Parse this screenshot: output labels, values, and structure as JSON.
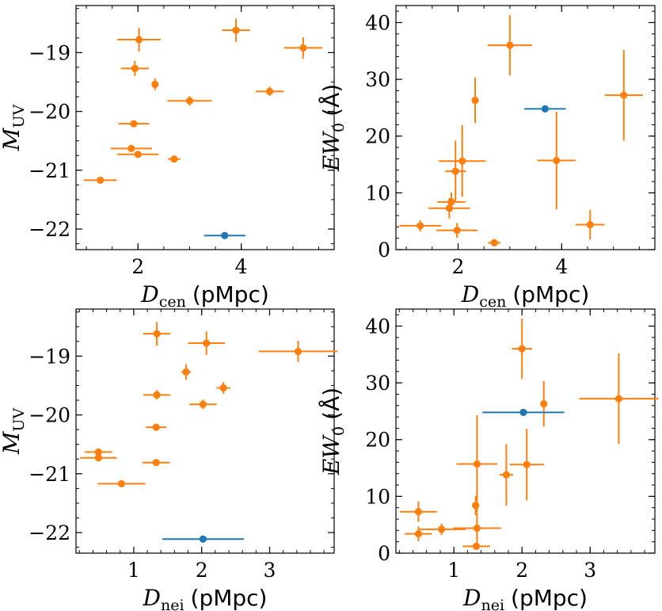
{
  "colors": {
    "orange": "#ff7f0e",
    "blue": "#1f77b4"
  },
  "chart_data": [
    {
      "type": "scatter",
      "id": "p1",
      "xlabel": {
        "symbol": "D",
        "sub": "cen",
        "unit": "(pMpc)"
      },
      "ylabel": {
        "symbol": "M",
        "sub": "UV",
        "unit": ""
      },
      "xlim": [
        0.8,
        5.8
      ],
      "ylim": [
        -22.35,
        -18.2
      ],
      "y_inverted": true,
      "xticks": [
        2,
        4
      ],
      "xtick_labels": [
        "2",
        "4"
      ],
      "yticks": [
        -19,
        -20,
        -21,
        -22
      ],
      "ytick_labels": [
        "−19",
        "−20",
        "−21",
        "−22"
      ],
      "series": [
        {
          "name": "orange",
          "color": "#ff7f0e",
          "points": [
            {
              "x": 2.02,
              "y": -18.78,
              "xerr": 0.42,
              "yerr": 0.2
            },
            {
              "x": 3.9,
              "y": -18.62,
              "xerr": 0.27,
              "yerr": 0.2
            },
            {
              "x": 5.2,
              "y": -18.92,
              "xerr": 0.37,
              "yerr": 0.18
            },
            {
              "x": 1.94,
              "y": -19.27,
              "xerr": 0.27,
              "yerr": 0.13
            },
            {
              "x": 2.33,
              "y": -19.54,
              "xerr": 0.05,
              "yerr": 0.1
            },
            {
              "x": 3.0,
              "y": -19.82,
              "xerr": 0.43,
              "yerr": 0.08
            },
            {
              "x": 4.55,
              "y": -19.66,
              "xerr": 0.27,
              "yerr": 0.08
            },
            {
              "x": 1.92,
              "y": -20.21,
              "xerr": 0.3,
              "yerr": 0.04
            },
            {
              "x": 1.87,
              "y": -20.63,
              "xerr": 0.4,
              "yerr": 0.04
            },
            {
              "x": 2.0,
              "y": -20.73,
              "xerr": 0.4,
              "yerr": 0.04
            },
            {
              "x": 2.7,
              "y": -20.81,
              "xerr": 0.12,
              "yerr": 0.04
            },
            {
              "x": 1.27,
              "y": -21.17,
              "xerr": 0.32,
              "yerr": 0.03
            }
          ]
        },
        {
          "name": "blue",
          "color": "#1f77b4",
          "points": [
            {
              "x": 3.68,
              "y": -22.11,
              "xerr": 0.4,
              "yerr": 0.0
            }
          ]
        }
      ]
    },
    {
      "type": "scatter",
      "id": "p2",
      "xlabel": {
        "symbol": "D",
        "sub": "cen",
        "unit": "(pMpc)"
      },
      "ylabel": {
        "symbol": "EW",
        "sub": "0",
        "unit": "(Å)"
      },
      "xlim": [
        0.8,
        5.8
      ],
      "ylim": [
        0,
        43
      ],
      "y_inverted": false,
      "xticks": [
        2,
        4
      ],
      "xtick_labels": [
        "2",
        "4"
      ],
      "yticks": [
        0,
        10,
        20,
        30,
        40
      ],
      "ytick_labels": [
        "0",
        "10",
        "20",
        "30",
        "40"
      ],
      "series": [
        {
          "name": "orange",
          "color": "#ff7f0e",
          "points": [
            {
              "x": 3.0,
              "y": 36.0,
              "xerr": 0.43,
              "yerr": 5.3
            },
            {
              "x": 5.2,
              "y": 27.2,
              "xerr": 0.37,
              "yerr": 8.0
            },
            {
              "x": 2.33,
              "y": 26.3,
              "xerr": 0.05,
              "yerr": 4.0
            },
            {
              "x": 2.08,
              "y": 15.6,
              "xerr": 0.45,
              "yerr": 6.3
            },
            {
              "x": 3.9,
              "y": 15.7,
              "xerr": 0.37,
              "yerr": 8.6
            },
            {
              "x": 1.95,
              "y": 13.8,
              "xerr": 0.2,
              "yerr": 5.4
            },
            {
              "x": 1.87,
              "y": 8.4,
              "xerr": 0.27,
              "yerr": 1.7
            },
            {
              "x": 1.83,
              "y": 7.3,
              "xerr": 0.4,
              "yerr": 1.8
            },
            {
              "x": 1.27,
              "y": 4.2,
              "xerr": 0.4,
              "yerr": 1.0
            },
            {
              "x": 1.98,
              "y": 3.4,
              "xerr": 0.4,
              "yerr": 1.3
            },
            {
              "x": 4.55,
              "y": 4.4,
              "xerr": 0.28,
              "yerr": 2.6
            },
            {
              "x": 2.7,
              "y": 1.2,
              "xerr": 0.12,
              "yerr": 0.5
            }
          ]
        },
        {
          "name": "blue",
          "color": "#1f77b4",
          "points": [
            {
              "x": 3.68,
              "y": 24.8,
              "xerr": 0.4,
              "yerr": 0.5
            }
          ]
        }
      ]
    },
    {
      "type": "scatter",
      "id": "p3",
      "xlabel": {
        "symbol": "D",
        "sub": "nei",
        "unit": "(pMpc)"
      },
      "ylabel": {
        "symbol": "M",
        "sub": "UV",
        "unit": ""
      },
      "xlim": [
        0.15,
        3.95
      ],
      "ylim": [
        -22.35,
        -18.2
      ],
      "y_inverted": true,
      "xticks": [
        1,
        2,
        3
      ],
      "xtick_labels": [
        "1",
        "2",
        "3"
      ],
      "yticks": [
        -19,
        -20,
        -21,
        -22
      ],
      "ytick_labels": [
        "−19",
        "−20",
        "−21",
        "−22"
      ],
      "series": [
        {
          "name": "orange",
          "color": "#ff7f0e",
          "points": [
            {
              "x": 1.34,
              "y": -18.62,
              "xerr": 0.2,
              "yerr": 0.2
            },
            {
              "x": 2.07,
              "y": -18.78,
              "xerr": 0.27,
              "yerr": 0.2
            },
            {
              "x": 3.42,
              "y": -18.92,
              "xerr": 0.58,
              "yerr": 0.18
            },
            {
              "x": 1.77,
              "y": -19.27,
              "xerr": 0.07,
              "yerr": 0.13
            },
            {
              "x": 2.32,
              "y": -19.54,
              "xerr": 0.1,
              "yerr": 0.1
            },
            {
              "x": 1.34,
              "y": -19.66,
              "xerr": 0.2,
              "yerr": 0.08
            },
            {
              "x": 2.02,
              "y": -19.82,
              "xerr": 0.2,
              "yerr": 0.08
            },
            {
              "x": 1.33,
              "y": -20.21,
              "xerr": 0.15,
              "yerr": 0.04
            },
            {
              "x": 0.48,
              "y": -20.63,
              "xerr": 0.2,
              "yerr": 0.04
            },
            {
              "x": 0.48,
              "y": -20.73,
              "xerr": 0.27,
              "yerr": 0.04
            },
            {
              "x": 1.33,
              "y": -20.81,
              "xerr": 0.2,
              "yerr": 0.04
            },
            {
              "x": 0.82,
              "y": -21.17,
              "xerr": 0.35,
              "yerr": 0.03
            }
          ]
        },
        {
          "name": "blue",
          "color": "#1f77b4",
          "points": [
            {
              "x": 2.02,
              "y": -22.11,
              "xerr": 0.6,
              "yerr": 0.0
            }
          ]
        }
      ]
    },
    {
      "type": "scatter",
      "id": "p4",
      "xlabel": {
        "symbol": "D",
        "sub": "nei",
        "unit": "(pMpc)"
      },
      "ylabel": {
        "symbol": "EW",
        "sub": "0",
        "unit": "(Å)"
      },
      "xlim": [
        0.15,
        3.95
      ],
      "ylim": [
        0,
        43
      ],
      "y_inverted": false,
      "xticks": [
        1,
        2,
        3
      ],
      "xtick_labels": [
        "1",
        "2",
        "3"
      ],
      "yticks": [
        0,
        10,
        20,
        30,
        40
      ],
      "ytick_labels": [
        "0",
        "10",
        "20",
        "30",
        "40"
      ],
      "series": [
        {
          "name": "orange",
          "color": "#ff7f0e",
          "points": [
            {
              "x": 2.0,
              "y": 36.0,
              "xerr": 0.15,
              "yerr": 5.3
            },
            {
              "x": 3.42,
              "y": 27.2,
              "xerr": 0.58,
              "yerr": 8.0
            },
            {
              "x": 2.32,
              "y": 26.3,
              "xerr": 0.05,
              "yerr": 4.0
            },
            {
              "x": 1.34,
              "y": 15.7,
              "xerr": 0.3,
              "yerr": 8.6
            },
            {
              "x": 2.07,
              "y": 15.6,
              "xerr": 0.25,
              "yerr": 6.3
            },
            {
              "x": 1.77,
              "y": 13.8,
              "xerr": 0.1,
              "yerr": 5.4
            },
            {
              "x": 1.32,
              "y": 8.4,
              "xerr": 0.05,
              "yerr": 1.7
            },
            {
              "x": 0.48,
              "y": 7.3,
              "xerr": 0.27,
              "yerr": 1.8
            },
            {
              "x": 0.82,
              "y": 4.2,
              "xerr": 0.35,
              "yerr": 1.0
            },
            {
              "x": 0.48,
              "y": 3.4,
              "xerr": 0.2,
              "yerr": 1.3
            },
            {
              "x": 1.34,
              "y": 4.4,
              "xerr": 0.35,
              "yerr": 2.6
            },
            {
              "x": 1.33,
              "y": 1.2,
              "xerr": 0.2,
              "yerr": 0.5
            }
          ]
        },
        {
          "name": "blue",
          "color": "#1f77b4",
          "points": [
            {
              "x": 2.02,
              "y": 24.8,
              "xerr": 0.6,
              "yerr": 0.5
            }
          ]
        }
      ]
    }
  ]
}
